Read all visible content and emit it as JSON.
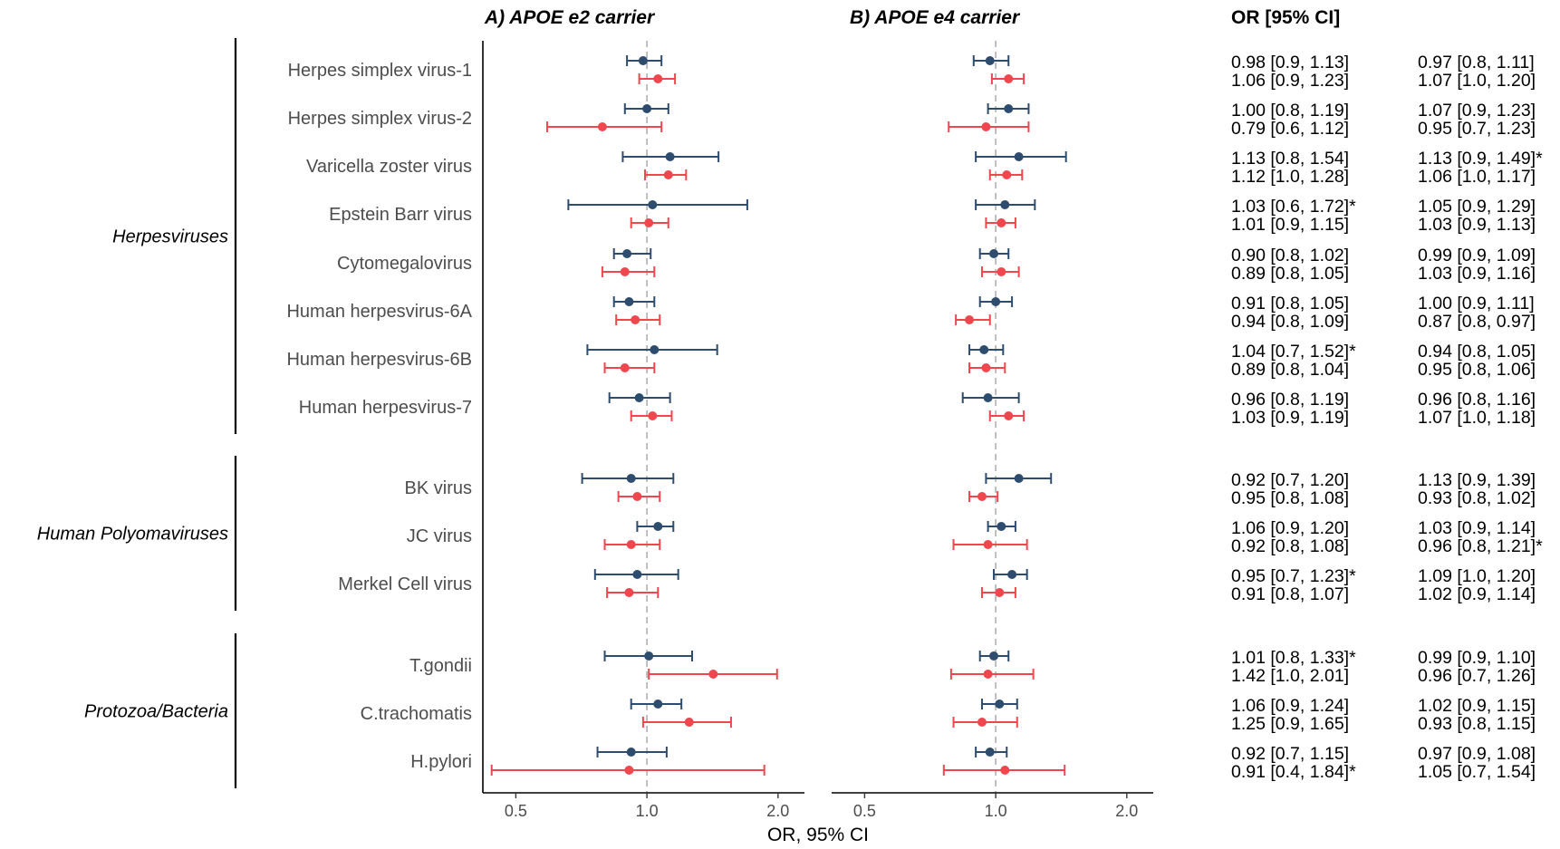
{
  "chart_data": {
    "type": "forest",
    "xscale": "log",
    "xlim": [
      0.42,
      2.3
    ],
    "xticks": [
      {
        "value": 0.5,
        "label": "0.5"
      },
      {
        "value": 1.0,
        "label": "1.0"
      },
      {
        "value": 2.0,
        "label": "2.0"
      }
    ],
    "reference_line": 1.0,
    "xlabel": "OR, 95% CI",
    "or_header": "OR [95% CI]",
    "colors": {
      "series1": "#2e4c6d",
      "series2": "#f0474e",
      "reference": "#b0b0b0"
    },
    "panels": [
      {
        "title": "A) APOE e2 carrier"
      },
      {
        "title": "B) APOE e4 carrier"
      }
    ],
    "groups": [
      {
        "label": "Herpesviruses",
        "rows": [
          0,
          7
        ]
      },
      {
        "label": "Human Polyomaviruses",
        "rows": [
          8,
          10
        ]
      },
      {
        "label": "Protozoa/Bacteria",
        "rows": [
          11,
          13
        ]
      }
    ],
    "rows": [
      {
        "label": "Herpes simplex virus-1",
        "e2": [
          {
            "or": 0.98,
            "lo": 0.9,
            "hi": 1.08,
            "text": "0.98 [0.9, 1.13]"
          },
          {
            "or": 1.06,
            "lo": 0.96,
            "hi": 1.16,
            "text": "1.06 [0.9, 1.23]"
          }
        ],
        "e4": [
          {
            "or": 0.97,
            "lo": 0.89,
            "hi": 1.07,
            "text": "0.97 [0.8, 1.11]"
          },
          {
            "or": 1.07,
            "lo": 0.98,
            "hi": 1.16,
            "text": "1.07 [1.0, 1.20]"
          }
        ]
      },
      {
        "label": "Herpes simplex virus-2",
        "e2": [
          {
            "or": 1.0,
            "lo": 0.89,
            "hi": 1.12,
            "text": "1.00 [0.8, 1.19]"
          },
          {
            "or": 0.79,
            "lo": 0.59,
            "hi": 1.08,
            "text": "0.79 [0.6, 1.12]"
          }
        ],
        "e4": [
          {
            "or": 1.07,
            "lo": 0.96,
            "hi": 1.19,
            "text": "1.07 [0.9, 1.23]"
          },
          {
            "or": 0.95,
            "lo": 0.78,
            "hi": 1.19,
            "text": "0.95 [0.7, 1.23]"
          }
        ]
      },
      {
        "label": "Varicella zoster virus",
        "e2": [
          {
            "or": 1.13,
            "lo": 0.88,
            "hi": 1.46,
            "text": "1.13 [0.8, 1.54]"
          },
          {
            "or": 1.12,
            "lo": 0.99,
            "hi": 1.23,
            "text": "1.12 [1.0, 1.28]"
          }
        ],
        "e4": [
          {
            "or": 1.13,
            "lo": 0.9,
            "hi": 1.45,
            "text": "1.13 [0.9, 1.49]*"
          },
          {
            "or": 1.06,
            "lo": 0.97,
            "hi": 1.15,
            "text": "1.06 [1.0, 1.17]"
          }
        ]
      },
      {
        "label": "Epstein Barr virus",
        "e2": [
          {
            "or": 1.03,
            "lo": 0.66,
            "hi": 1.7,
            "text": "1.03 [0.6, 1.72]*"
          },
          {
            "or": 1.01,
            "lo": 0.92,
            "hi": 1.12,
            "text": "1.01 [0.9, 1.15]"
          }
        ],
        "e4": [
          {
            "or": 1.05,
            "lo": 0.9,
            "hi": 1.23,
            "text": "1.05 [0.9, 1.29]"
          },
          {
            "or": 1.03,
            "lo": 0.95,
            "hi": 1.11,
            "text": "1.03 [0.9, 1.13]"
          }
        ]
      },
      {
        "label": "Cytomegalovirus",
        "e2": [
          {
            "or": 0.9,
            "lo": 0.84,
            "hi": 1.02,
            "text": "0.90 [0.8, 1.02]"
          },
          {
            "or": 0.89,
            "lo": 0.79,
            "hi": 1.04,
            "text": "0.89 [0.8, 1.05]"
          }
        ],
        "e4": [
          {
            "or": 0.99,
            "lo": 0.92,
            "hi": 1.07,
            "text": "0.99 [0.9, 1.09]"
          },
          {
            "or": 1.03,
            "lo": 0.93,
            "hi": 1.13,
            "text": "1.03 [0.9, 1.16]"
          }
        ]
      },
      {
        "label": "Human herpesvirus-6A",
        "e2": [
          {
            "or": 0.91,
            "lo": 0.84,
            "hi": 1.04,
            "text": "0.91 [0.8, 1.05]"
          },
          {
            "or": 0.94,
            "lo": 0.85,
            "hi": 1.07,
            "text": "0.94 [0.8, 1.09]"
          }
        ],
        "e4": [
          {
            "or": 1.0,
            "lo": 0.92,
            "hi": 1.09,
            "text": "1.00 [0.9, 1.11]"
          },
          {
            "or": 0.87,
            "lo": 0.81,
            "hi": 0.97,
            "text": "0.87 [0.8, 0.97]"
          }
        ]
      },
      {
        "label": "Human herpesvirus-6B",
        "e2": [
          {
            "or": 1.04,
            "lo": 0.73,
            "hi": 1.45,
            "text": "1.04 [0.7, 1.52]*"
          },
          {
            "or": 0.89,
            "lo": 0.8,
            "hi": 1.04,
            "text": "0.89 [0.8, 1.04]"
          }
        ],
        "e4": [
          {
            "or": 0.94,
            "lo": 0.87,
            "hi": 1.04,
            "text": "0.94 [0.8, 1.05]"
          },
          {
            "or": 0.95,
            "lo": 0.87,
            "hi": 1.05,
            "text": "0.95 [0.8, 1.06]"
          }
        ]
      },
      {
        "label": "Human herpesvirus-7",
        "e2": [
          {
            "or": 0.96,
            "lo": 0.82,
            "hi": 1.13,
            "text": "0.96 [0.8, 1.19]"
          },
          {
            "or": 1.03,
            "lo": 0.92,
            "hi": 1.14,
            "text": "1.03 [0.9, 1.19]"
          }
        ],
        "e4": [
          {
            "or": 0.96,
            "lo": 0.84,
            "hi": 1.13,
            "text": "0.96 [0.8, 1.16]"
          },
          {
            "or": 1.07,
            "lo": 0.97,
            "hi": 1.16,
            "text": "1.07 [1.0, 1.18]"
          }
        ]
      },
      {
        "label": "BK virus",
        "e2": [
          {
            "or": 0.92,
            "lo": 0.71,
            "hi": 1.15,
            "text": "0.92 [0.7, 1.20]"
          },
          {
            "or": 0.95,
            "lo": 0.86,
            "hi": 1.07,
            "text": "0.95 [0.8, 1.08]"
          }
        ],
        "e4": [
          {
            "or": 1.13,
            "lo": 0.95,
            "hi": 1.34,
            "text": "1.13 [0.9, 1.39]"
          },
          {
            "or": 0.93,
            "lo": 0.87,
            "hi": 1.01,
            "text": "0.93 [0.8, 1.02]"
          }
        ]
      },
      {
        "label": "JC virus",
        "e2": [
          {
            "or": 1.06,
            "lo": 0.95,
            "hi": 1.15,
            "text": "1.06 [0.9, 1.20]"
          },
          {
            "or": 0.92,
            "lo": 0.8,
            "hi": 1.07,
            "text": "0.92 [0.8, 1.08]"
          }
        ],
        "e4": [
          {
            "or": 1.03,
            "lo": 0.96,
            "hi": 1.11,
            "text": "1.03 [0.9, 1.14]"
          },
          {
            "or": 0.96,
            "lo": 0.8,
            "hi": 1.18,
            "text": "0.96 [0.8, 1.21]*"
          }
        ]
      },
      {
        "label": "Merkel Cell virus",
        "e2": [
          {
            "or": 0.95,
            "lo": 0.76,
            "hi": 1.18,
            "text": "0.95 [0.7, 1.23]*"
          },
          {
            "or": 0.91,
            "lo": 0.81,
            "hi": 1.06,
            "text": "0.91 [0.8, 1.07]"
          }
        ],
        "e4": [
          {
            "or": 1.09,
            "lo": 0.99,
            "hi": 1.18,
            "text": "1.09 [1.0, 1.20]"
          },
          {
            "or": 1.02,
            "lo": 0.93,
            "hi": 1.11,
            "text": "1.02 [0.9, 1.14]"
          }
        ]
      },
      {
        "label": "T.gondii",
        "e2": [
          {
            "or": 1.01,
            "lo": 0.8,
            "hi": 1.27,
            "text": "1.01 [0.8, 1.33]*"
          },
          {
            "or": 1.42,
            "lo": 1.01,
            "hi": 1.99,
            "text": "1.42 [1.0, 2.01]"
          }
        ],
        "e4": [
          {
            "or": 0.99,
            "lo": 0.92,
            "hi": 1.07,
            "text": "0.99 [0.9, 1.10]"
          },
          {
            "or": 0.96,
            "lo": 0.79,
            "hi": 1.22,
            "text": "0.96 [0.7, 1.26]"
          }
        ]
      },
      {
        "label": "C.trachomatis",
        "e2": [
          {
            "or": 1.06,
            "lo": 0.92,
            "hi": 1.2,
            "text": "1.06 [0.9, 1.24]"
          },
          {
            "or": 1.25,
            "lo": 0.98,
            "hi": 1.56,
            "text": "1.25 [0.9, 1.65]"
          }
        ],
        "e4": [
          {
            "or": 1.02,
            "lo": 0.93,
            "hi": 1.12,
            "text": "1.02 [0.9, 1.15]"
          },
          {
            "or": 0.93,
            "lo": 0.8,
            "hi": 1.12,
            "text": "0.93 [0.8, 1.15]"
          }
        ]
      },
      {
        "label": "H.pylori",
        "e2": [
          {
            "or": 0.92,
            "lo": 0.77,
            "hi": 1.11,
            "text": "0.92 [0.7, 1.15]"
          },
          {
            "or": 0.91,
            "lo": 0.44,
            "hi": 1.86,
            "text": "0.91 [0.4, 1.84]*"
          }
        ],
        "e4": [
          {
            "or": 0.97,
            "lo": 0.9,
            "hi": 1.06,
            "text": "0.97 [0.9, 1.08]"
          },
          {
            "or": 1.05,
            "lo": 0.76,
            "hi": 1.44,
            "text": "1.05 [0.7, 1.54]"
          }
        ]
      }
    ]
  }
}
